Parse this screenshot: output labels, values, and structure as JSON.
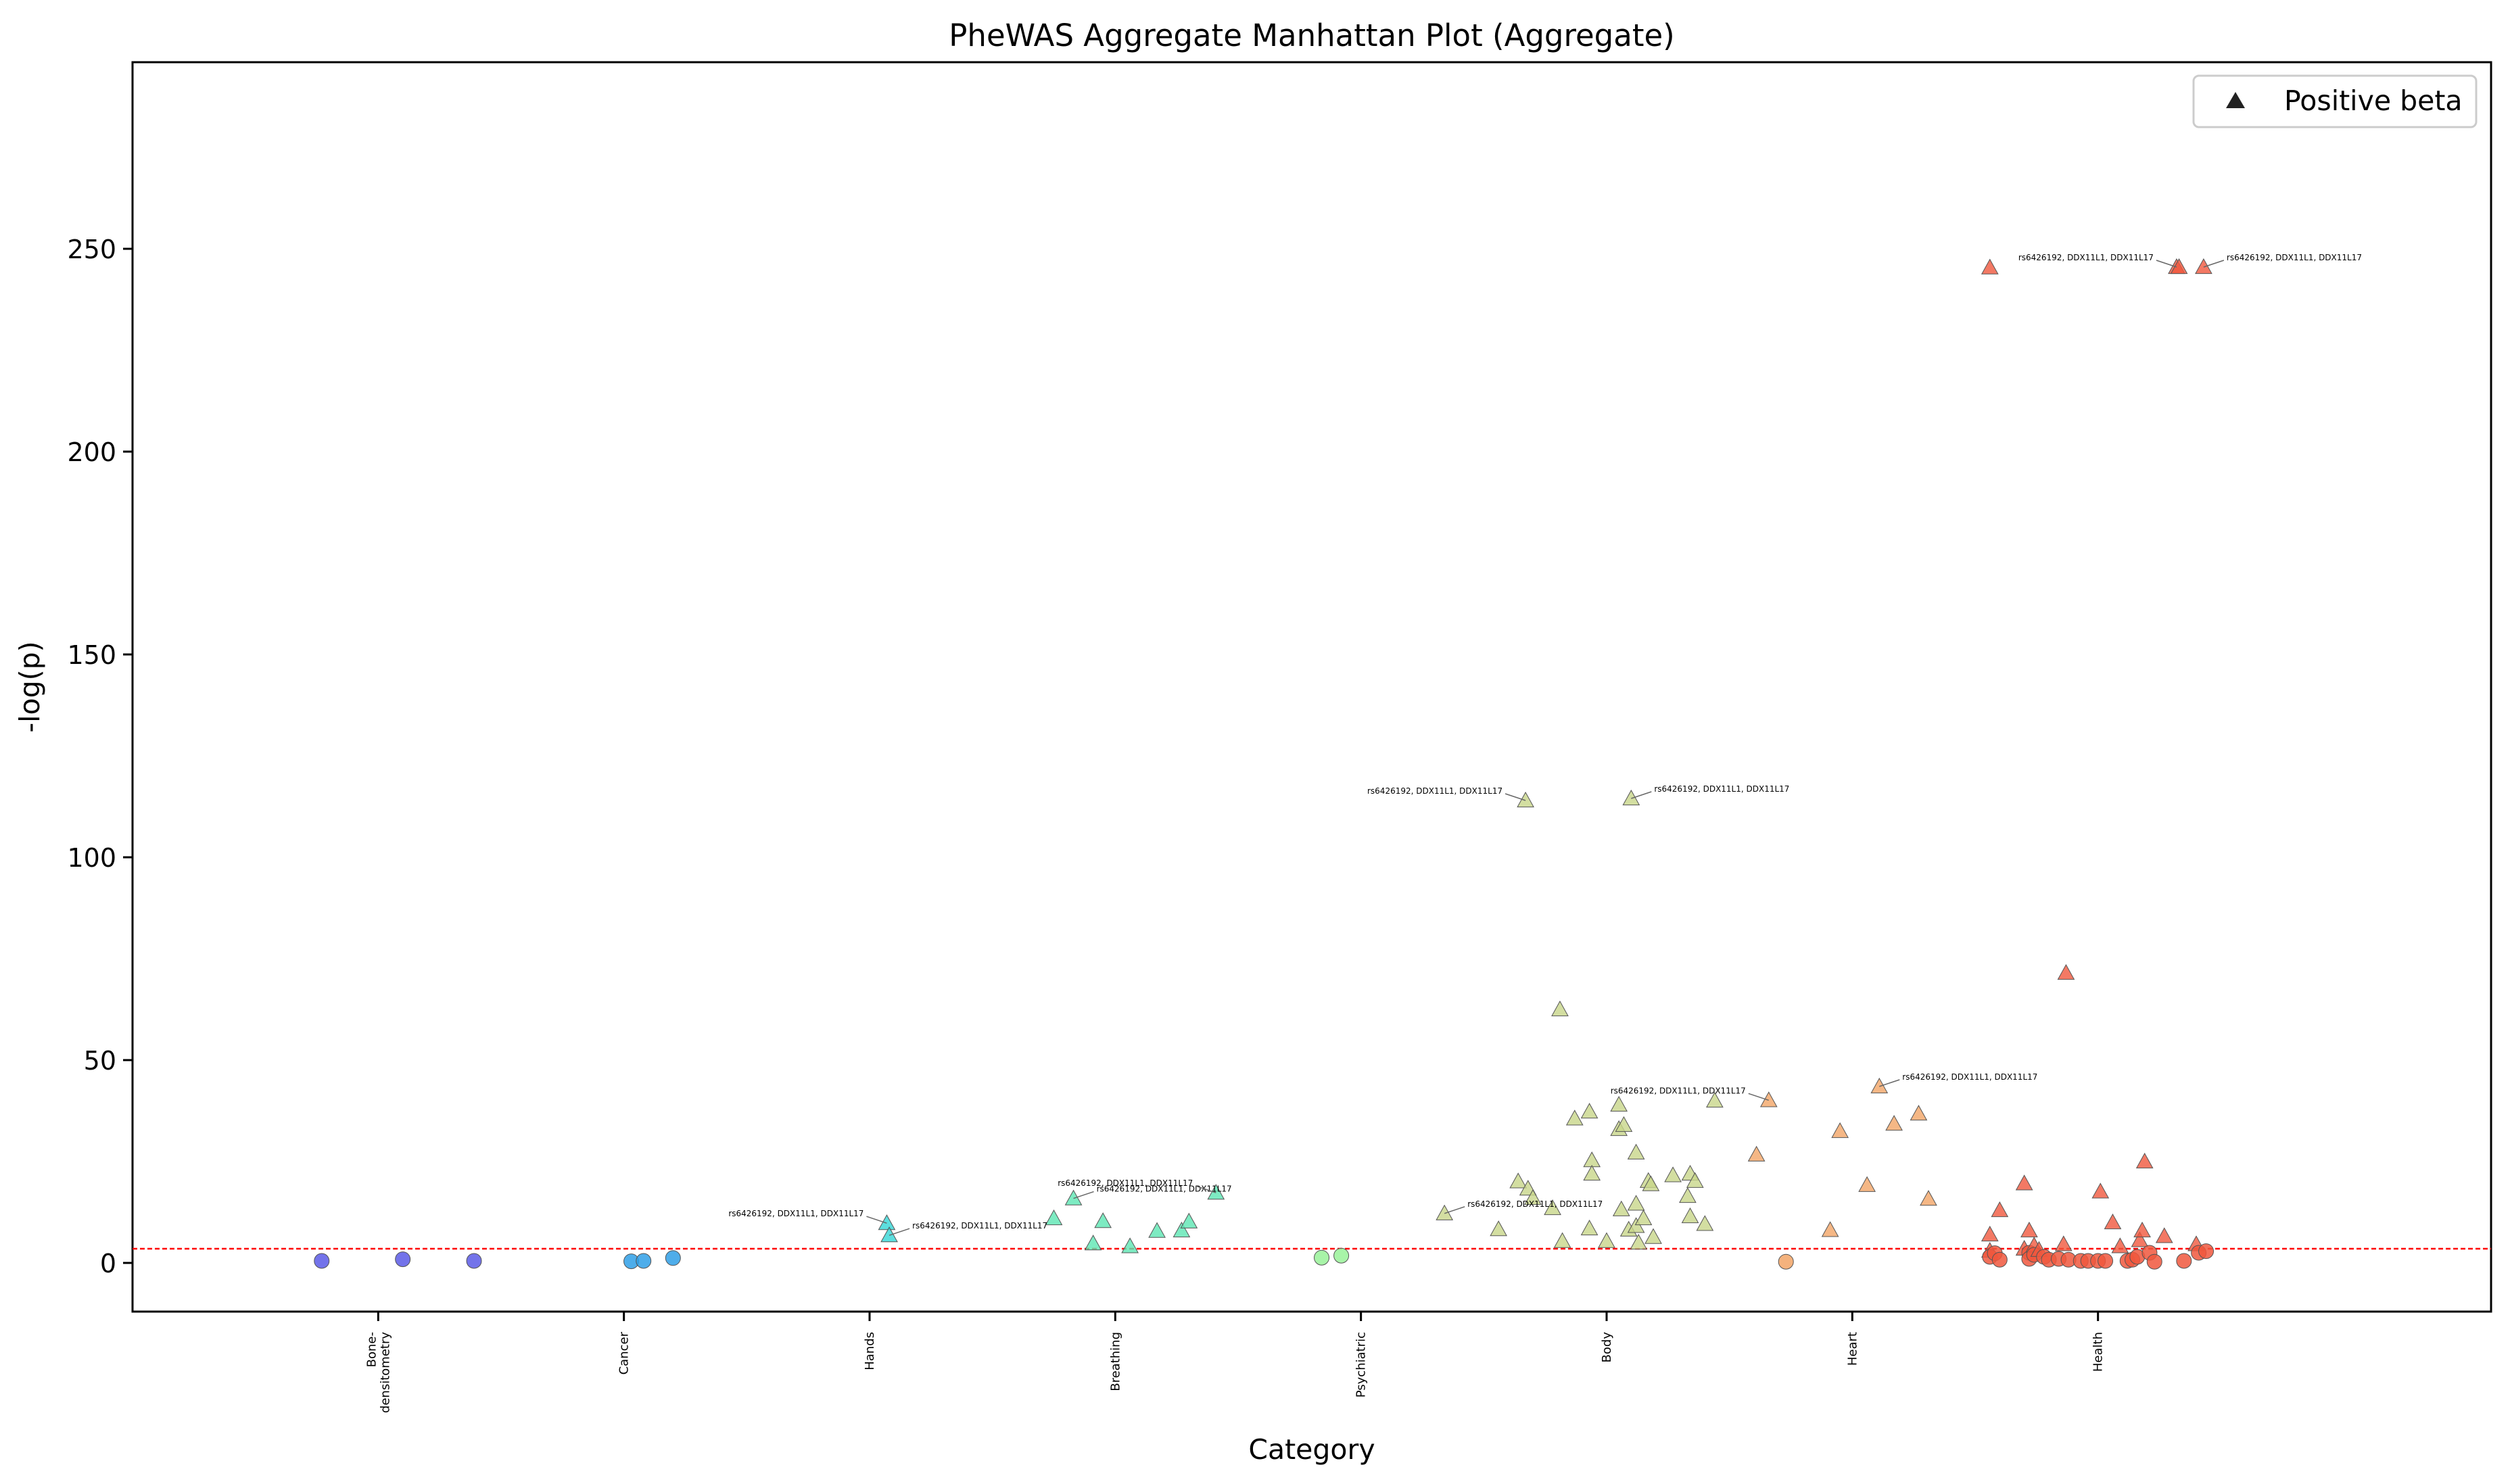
{
  "chart_data": {
    "type": "scatter",
    "title": "PheWAS Aggregate Manhattan Plot (Aggregate)",
    "xlabel": "Category",
    "ylabel": "-log(p)",
    "ylim": [
      -12,
      296
    ],
    "y_ticks": [
      0,
      50,
      100,
      150,
      200,
      250
    ],
    "categories": [
      "Bone-\ndensitometry",
      "Cancer",
      "Hands",
      "Breathing",
      "Psychiatric",
      "Body",
      "Heart",
      "Health"
    ],
    "category_colors": [
      "#5a5ae6",
      "#2f9fe6",
      "#33d6d6",
      "#5ce6b3",
      "#99f299",
      "#c8d68a",
      "#f2a566",
      "#f0573d"
    ],
    "threshold": {
      "y": 3.5,
      "color": "#ff0000",
      "style": "dashed"
    },
    "legend": {
      "label": "Positive beta",
      "marker": "triangle",
      "placement": "top-right"
    },
    "annotation_text": "rs6426192, DDX11L1, DDX11L17",
    "points": [
      {
        "x": 0.77,
        "y": 0.5,
        "cat": 0,
        "m": "o"
      },
      {
        "x": 1.1,
        "y": 0.9,
        "cat": 0,
        "m": "o"
      },
      {
        "x": 1.39,
        "y": 0.5,
        "cat": 0,
        "m": "o"
      },
      {
        "x": 2.03,
        "y": 0.4,
        "cat": 1,
        "m": "o"
      },
      {
        "x": 2.08,
        "y": 0.5,
        "cat": 1,
        "m": "o"
      },
      {
        "x": 2.2,
        "y": 1.2,
        "cat": 1,
        "m": "o"
      },
      {
        "x": 3.07,
        "y": 9.8,
        "cat": 2,
        "m": "^",
        "ann": true
      },
      {
        "x": 3.08,
        "y": 6.8,
        "cat": 2,
        "m": "^",
        "ann": true
      },
      {
        "x": 3.75,
        "y": 11.0,
        "cat": 3,
        "m": "^"
      },
      {
        "x": 3.83,
        "y": 15.9,
        "cat": 3,
        "m": "^",
        "ann": true
      },
      {
        "x": 3.91,
        "y": 4.8,
        "cat": 3,
        "m": "^"
      },
      {
        "x": 3.95,
        "y": 10.3,
        "cat": 3,
        "m": "^"
      },
      {
        "x": 4.06,
        "y": 4.1,
        "cat": 3,
        "m": "^"
      },
      {
        "x": 4.17,
        "y": 7.9,
        "cat": 3,
        "m": "^"
      },
      {
        "x": 4.27,
        "y": 8.0,
        "cat": 3,
        "m": "^"
      },
      {
        "x": 4.3,
        "y": 10.2,
        "cat": 3,
        "m": "^"
      },
      {
        "x": 4.41,
        "y": 17.3,
        "cat": 3,
        "m": "^",
        "ann": true
      },
      {
        "x": 4.84,
        "y": 1.3,
        "cat": 4,
        "m": "o"
      },
      {
        "x": 4.92,
        "y": 1.8,
        "cat": 4,
        "m": "o"
      },
      {
        "x": 5.34,
        "y": 12.2,
        "cat": 5,
        "m": "^",
        "ann": true
      },
      {
        "x": 5.56,
        "y": 8.3,
        "cat": 5,
        "m": "^"
      },
      {
        "x": 5.64,
        "y": 20.1,
        "cat": 5,
        "m": "^"
      },
      {
        "x": 5.67,
        "y": 114.0,
        "cat": 5,
        "m": "^",
        "ann": true
      },
      {
        "x": 5.68,
        "y": 18.3,
        "cat": 5,
        "m": "^"
      },
      {
        "x": 5.7,
        "y": 16.0,
        "cat": 5,
        "m": "^"
      },
      {
        "x": 5.78,
        "y": 13.5,
        "cat": 5,
        "m": "^"
      },
      {
        "x": 5.81,
        "y": 62.5,
        "cat": 5,
        "m": "^"
      },
      {
        "x": 5.82,
        "y": 5.4,
        "cat": 5,
        "m": "^"
      },
      {
        "x": 5.87,
        "y": 35.6,
        "cat": 5,
        "m": "^"
      },
      {
        "x": 5.93,
        "y": 37.3,
        "cat": 5,
        "m": "^"
      },
      {
        "x": 5.93,
        "y": 8.5,
        "cat": 5,
        "m": "^"
      },
      {
        "x": 5.94,
        "y": 25.3,
        "cat": 5,
        "m": "^"
      },
      {
        "x": 5.94,
        "y": 22.0,
        "cat": 5,
        "m": "^"
      },
      {
        "x": 6.0,
        "y": 5.4,
        "cat": 5,
        "m": "^"
      },
      {
        "x": 6.05,
        "y": 39.0,
        "cat": 5,
        "m": "^"
      },
      {
        "x": 6.05,
        "y": 33.0,
        "cat": 5,
        "m": "^"
      },
      {
        "x": 6.06,
        "y": 13.2,
        "cat": 5,
        "m": "^"
      },
      {
        "x": 6.07,
        "y": 34.0,
        "cat": 5,
        "m": "^"
      },
      {
        "x": 6.09,
        "y": 8.2,
        "cat": 5,
        "m": "^"
      },
      {
        "x": 6.1,
        "y": 114.5,
        "cat": 5,
        "m": "^",
        "ann": true
      },
      {
        "x": 6.12,
        "y": 27.2,
        "cat": 5,
        "m": "^"
      },
      {
        "x": 6.12,
        "y": 9.1,
        "cat": 5,
        "m": "^"
      },
      {
        "x": 6.12,
        "y": 14.6,
        "cat": 5,
        "m": "^"
      },
      {
        "x": 6.13,
        "y": 5.0,
        "cat": 5,
        "m": "^"
      },
      {
        "x": 6.15,
        "y": 11.0,
        "cat": 5,
        "m": "^"
      },
      {
        "x": 6.17,
        "y": 20.2,
        "cat": 5,
        "m": "^"
      },
      {
        "x": 6.18,
        "y": 19.4,
        "cat": 5,
        "m": "^"
      },
      {
        "x": 6.19,
        "y": 6.4,
        "cat": 5,
        "m": "^"
      },
      {
        "x": 6.27,
        "y": 21.6,
        "cat": 5,
        "m": "^"
      },
      {
        "x": 6.33,
        "y": 16.5,
        "cat": 5,
        "m": "^"
      },
      {
        "x": 6.34,
        "y": 22.0,
        "cat": 5,
        "m": "^"
      },
      {
        "x": 6.34,
        "y": 11.5,
        "cat": 5,
        "m": "^"
      },
      {
        "x": 6.36,
        "y": 20.2,
        "cat": 5,
        "m": "^"
      },
      {
        "x": 6.4,
        "y": 9.6,
        "cat": 5,
        "m": "^"
      },
      {
        "x": 6.44,
        "y": 40.0,
        "cat": 5,
        "m": "^"
      },
      {
        "x": 6.61,
        "y": 26.7,
        "cat": 6,
        "m": "^"
      },
      {
        "x": 6.66,
        "y": 40.1,
        "cat": 6,
        "m": "^",
        "ann": true
      },
      {
        "x": 6.73,
        "y": 0.3,
        "cat": 6,
        "m": "o"
      },
      {
        "x": 6.91,
        "y": 8.1,
        "cat": 6,
        "m": "^"
      },
      {
        "x": 6.95,
        "y": 32.5,
        "cat": 6,
        "m": "^"
      },
      {
        "x": 7.06,
        "y": 19.2,
        "cat": 6,
        "m": "^"
      },
      {
        "x": 7.11,
        "y": 43.5,
        "cat": 6,
        "m": "^",
        "ann": true
      },
      {
        "x": 7.17,
        "y": 34.3,
        "cat": 6,
        "m": "^"
      },
      {
        "x": 7.27,
        "y": 36.8,
        "cat": 6,
        "m": "^"
      },
      {
        "x": 7.31,
        "y": 15.8,
        "cat": 6,
        "m": "^"
      },
      {
        "x": 7.56,
        "y": 245.4,
        "cat": 7,
        "m": "^"
      },
      {
        "x": 7.56,
        "y": 7.0,
        "cat": 7,
        "m": "^"
      },
      {
        "x": 7.56,
        "y": 3.0,
        "cat": 7,
        "m": "^"
      },
      {
        "x": 7.56,
        "y": 1.5,
        "cat": 7,
        "m": "o"
      },
      {
        "x": 7.58,
        "y": 2.4,
        "cat": 7,
        "m": "o"
      },
      {
        "x": 7.6,
        "y": 13.0,
        "cat": 7,
        "m": "^"
      },
      {
        "x": 7.6,
        "y": 0.8,
        "cat": 7,
        "m": "o"
      },
      {
        "x": 7.7,
        "y": 3.5,
        "cat": 7,
        "m": "^"
      },
      {
        "x": 7.7,
        "y": 19.6,
        "cat": 7,
        "m": "^"
      },
      {
        "x": 7.72,
        "y": 8.0,
        "cat": 7,
        "m": "^"
      },
      {
        "x": 7.72,
        "y": 2.5,
        "cat": 7,
        "m": "o"
      },
      {
        "x": 7.72,
        "y": 1.0,
        "cat": 7,
        "m": "o"
      },
      {
        "x": 7.74,
        "y": 4.3,
        "cat": 7,
        "m": "^"
      },
      {
        "x": 7.74,
        "y": 2.0,
        "cat": 7,
        "m": "o"
      },
      {
        "x": 7.76,
        "y": 3.2,
        "cat": 7,
        "m": "^"
      },
      {
        "x": 7.78,
        "y": 1.5,
        "cat": 7,
        "m": "o"
      },
      {
        "x": 7.8,
        "y": 0.8,
        "cat": 7,
        "m": "o"
      },
      {
        "x": 7.84,
        "y": 1.0,
        "cat": 7,
        "m": "o"
      },
      {
        "x": 7.86,
        "y": 4.6,
        "cat": 7,
        "m": "^"
      },
      {
        "x": 7.87,
        "y": 71.5,
        "cat": 7,
        "m": "^"
      },
      {
        "x": 7.88,
        "y": 0.8,
        "cat": 7,
        "m": "o"
      },
      {
        "x": 7.93,
        "y": 0.5,
        "cat": 7,
        "m": "o"
      },
      {
        "x": 7.96,
        "y": 0.5,
        "cat": 7,
        "m": "o"
      },
      {
        "x": 8.0,
        "y": 0.5,
        "cat": 7,
        "m": "o"
      },
      {
        "x": 8.01,
        "y": 17.6,
        "cat": 7,
        "m": "^"
      },
      {
        "x": 8.03,
        "y": 0.5,
        "cat": 7,
        "m": "o"
      },
      {
        "x": 8.06,
        "y": 10.0,
        "cat": 7,
        "m": "^"
      },
      {
        "x": 8.09,
        "y": 4.1,
        "cat": 7,
        "m": "^"
      },
      {
        "x": 8.12,
        "y": 0.5,
        "cat": 7,
        "m": "o"
      },
      {
        "x": 8.14,
        "y": 0.8,
        "cat": 7,
        "m": "o"
      },
      {
        "x": 8.16,
        "y": 1.5,
        "cat": 7,
        "m": "o"
      },
      {
        "x": 8.17,
        "y": 5.6,
        "cat": 7,
        "m": "^"
      },
      {
        "x": 8.18,
        "y": 8.0,
        "cat": 7,
        "m": "^"
      },
      {
        "x": 8.19,
        "y": 25.0,
        "cat": 7,
        "m": "^"
      },
      {
        "x": 8.21,
        "y": 2.5,
        "cat": 7,
        "m": "o"
      },
      {
        "x": 8.23,
        "y": 0.3,
        "cat": 7,
        "m": "o"
      },
      {
        "x": 8.27,
        "y": 6.6,
        "cat": 7,
        "m": "^"
      },
      {
        "x": 8.32,
        "y": 245.5,
        "cat": 7,
        "m": "^",
        "ann": true
      },
      {
        "x": 8.33,
        "y": 245.5,
        "cat": 7,
        "m": "^"
      },
      {
        "x": 8.35,
        "y": 0.5,
        "cat": 7,
        "m": "o"
      },
      {
        "x": 8.4,
        "y": 4.6,
        "cat": 7,
        "m": "^"
      },
      {
        "x": 8.41,
        "y": 2.5,
        "cat": 7,
        "m": "o"
      },
      {
        "x": 8.43,
        "y": 245.5,
        "cat": 7,
        "m": "^",
        "ann": true
      },
      {
        "x": 8.44,
        "y": 2.9,
        "cat": 7,
        "m": "o"
      }
    ]
  }
}
